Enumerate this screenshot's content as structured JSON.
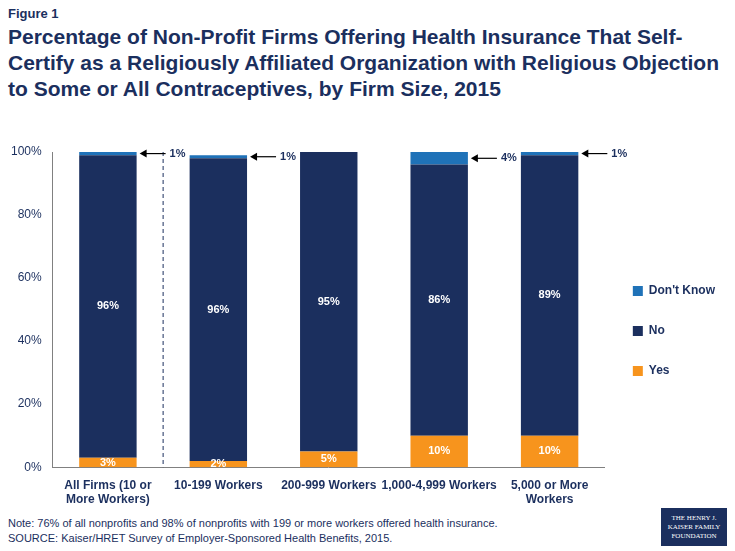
{
  "figure_label": "Figure 1",
  "chart_data": {
    "type": "bar",
    "title": "Percentage of Non-Profit Firms Offering Health Insurance That Self-Certify as a Religiously Affiliated Organization with Religious Objection to Some or All Contraceptives, by Firm Size, 2015",
    "categories": [
      "All Firms (10 or More Workers)",
      "10-199 Workers",
      "200-999 Workers",
      "1,000-4,999 Workers",
      "5,000 or More Workers"
    ],
    "series": [
      {
        "name": "Yes",
        "color": "#f7941d",
        "values": [
          3,
          2,
          5,
          10,
          10
        ],
        "value_labels": [
          "3%",
          "2%",
          "5%",
          "10%",
          "10%"
        ]
      },
      {
        "name": "No",
        "color": "#1b2f5e",
        "values": [
          96,
          96,
          95,
          86,
          89
        ],
        "value_labels": [
          "96%",
          "96%",
          "95%",
          "86%",
          "89%"
        ]
      },
      {
        "name": "Don't Know",
        "color": "#1f72b8",
        "values": [
          1,
          1,
          0,
          4,
          1
        ],
        "value_labels": [
          "1%",
          "1%",
          null,
          "4%",
          "1%"
        ]
      }
    ],
    "ylim": [
      0,
      100
    ],
    "yticks": [
      {
        "value": 0,
        "label": "0%"
      },
      {
        "value": 20,
        "label": "20%"
      },
      {
        "value": 40,
        "label": "40%"
      },
      {
        "value": 60,
        "label": "60%"
      },
      {
        "value": 80,
        "label": "80%"
      },
      {
        "value": 100,
        "label": "100%"
      }
    ],
    "stacked": true,
    "data_labels": true,
    "legend": "right",
    "grid": false
  },
  "note": "Note: 76% of all nonprofits and 98% of nonprofits with 199 or more workers offered health insurance.",
  "source": "SOURCE: Kaiser/HRET Survey of Employer-Sponsored Health Benefits, 2015.",
  "logo": "THE HENRY J. KAISER FAMILY FOUNDATION"
}
